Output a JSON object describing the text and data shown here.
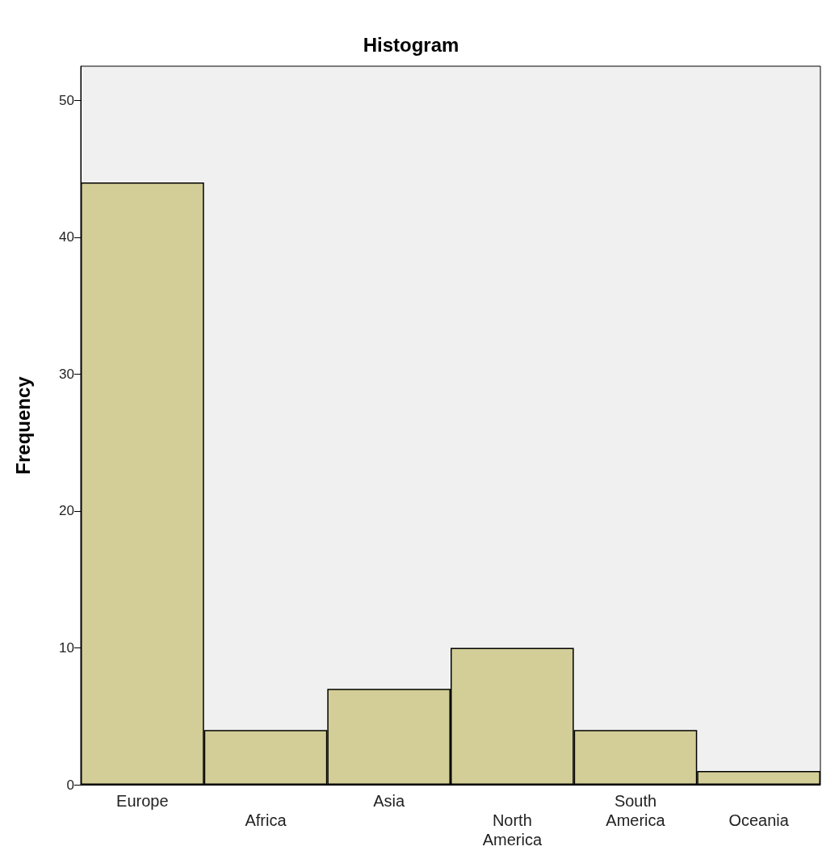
{
  "chart_data": {
    "type": "bar",
    "title": "Histogram",
    "ylabel": "Frequency",
    "categories": [
      "Europe",
      "Africa",
      "Asia",
      "North America",
      "South America",
      "Oceania"
    ],
    "values": [
      44,
      4,
      7,
      10,
      4,
      1
    ],
    "color": "#d3ce97",
    "ylim": [
      0,
      52.5
    ],
    "yticks": [
      0,
      10,
      20,
      30,
      40,
      50
    ],
    "grid": false
  }
}
